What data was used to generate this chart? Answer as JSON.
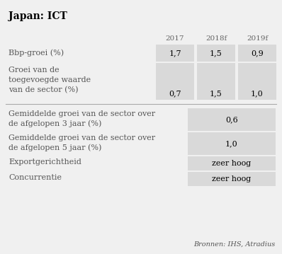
{
  "title": "Japan: ICT",
  "bg_color": "#f0f0f0",
  "cell_bg": "#d9d9d9",
  "col_headers": [
    "2017",
    "2018f",
    "2019f"
  ],
  "row1_label": "Bbp-groei (%)",
  "row1_values": [
    "1,7",
    "1,5",
    "0,9"
  ],
  "row2_label_lines": [
    "Groei van de",
    "toegevoegde waarde",
    "van de sector (%)"
  ],
  "row2_values": [
    "0,7",
    "1,5",
    "1,0"
  ],
  "section2_rows": [
    {
      "label_lines": [
        "Gemiddelde groei van de sector over",
        "de afgelopen 3 jaar (%)"
      ],
      "value": "0,6"
    },
    {
      "label_lines": [
        "Gemiddelde groei van de sector over",
        "de afgelopen 5 jaar (%)"
      ],
      "value": "1,0"
    },
    {
      "label_lines": [
        "Exportgerichtheid"
      ],
      "value": "zeer hoog"
    },
    {
      "label_lines": [
        "Concurrentie"
      ],
      "value": "zeer hoog"
    }
  ],
  "source": "Bronnen: IHS, Atradius",
  "title_fontsize": 10,
  "header_fontsize": 7.5,
  "body_fontsize": 8,
  "source_fontsize": 7
}
